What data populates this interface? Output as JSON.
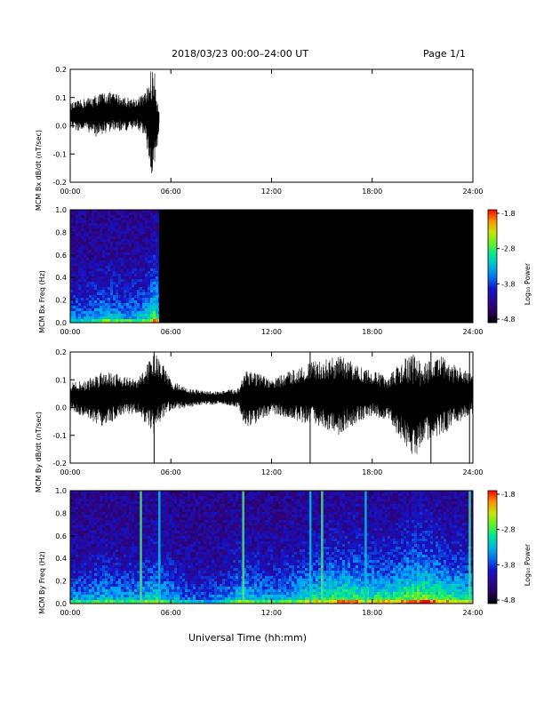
{
  "header": {
    "title": "2018/03/23  00:00–24:00 UT",
    "page": "Page 1/1"
  },
  "x_axis_label": "Universal Time (hh:mm)",
  "chart_data": [
    {
      "type": "line",
      "ylabel": "MCM Bx dB/dt (nT/sec)",
      "xlim": [
        0,
        24
      ],
      "ylim": [
        -0.2,
        0.2
      ],
      "xticks": [
        "00:00",
        "06:00",
        "12:00",
        "18:00",
        "24:00"
      ],
      "yticks": [
        "-0.2",
        "-0.1",
        "0.0",
        "0.1",
        "0.2"
      ],
      "data_end_hour": 5.3,
      "envelope": {
        "x": [
          0,
          0.5,
          1,
          1.5,
          2,
          2.5,
          3,
          3.5,
          4,
          4.5,
          4.8,
          5.0,
          5.1,
          5.2,
          5.3
        ],
        "upper": [
          0.08,
          0.09,
          0.1,
          0.11,
          0.12,
          0.12,
          0.11,
          0.1,
          0.1,
          0.12,
          0.2,
          0.2,
          0.16,
          0.1,
          0.06
        ],
        "lower": [
          -0.01,
          -0.02,
          -0.02,
          -0.04,
          -0.03,
          -0.02,
          -0.02,
          -0.02,
          -0.01,
          -0.04,
          -0.2,
          -0.15,
          -0.12,
          -0.08,
          0.0
        ]
      }
    },
    {
      "type": "heatmap",
      "ylabel": "MCM Bx Freq (Hz)",
      "colorbar_label": "Log₁₀ Power",
      "xlim": [
        0,
        24
      ],
      "ylim": [
        0,
        1.0
      ],
      "xticks": [
        "00:00",
        "06:00",
        "12:00",
        "18:00",
        "24:00"
      ],
      "yticks": [
        "0.0",
        "0.2",
        "0.4",
        "0.6",
        "0.8",
        "1.0"
      ],
      "colorbar_ticks": [
        "-1.8",
        "-2.8",
        "-3.8",
        "-4.8"
      ],
      "clim": [
        -4.8,
        -1.8
      ],
      "data_end_hour": 5.3,
      "activity": [
        [
          0,
          0.4
        ],
        [
          1,
          0.45
        ],
        [
          2,
          0.55
        ],
        [
          3,
          0.5
        ],
        [
          4,
          0.5
        ],
        [
          4.5,
          0.6
        ],
        [
          5.0,
          0.8
        ],
        [
          5.3,
          0.5
        ]
      ]
    },
    {
      "type": "line",
      "ylabel": "MCM By dB/dt (nT/sec)",
      "xlim": [
        0,
        24
      ],
      "ylim": [
        -0.2,
        0.2
      ],
      "xticks": [
        "00:00",
        "06:00",
        "12:00",
        "18:00",
        "24:00"
      ],
      "yticks": [
        "-0.2",
        "-0.1",
        "0.0",
        "0.1",
        "0.2"
      ],
      "data_end_hour": 24,
      "spikes": [
        5.0,
        14.3,
        21.5,
        23.8
      ],
      "envelope": {
        "x": [
          0,
          1,
          2,
          3,
          4,
          5,
          5.5,
          6,
          7,
          8,
          9,
          10,
          10.5,
          11,
          12,
          13,
          14,
          15,
          16,
          17,
          18,
          19,
          20,
          20.5,
          21,
          22,
          23,
          24
        ],
        "upper": [
          0.09,
          0.1,
          0.14,
          0.12,
          0.1,
          0.2,
          0.16,
          0.1,
          0.07,
          0.06,
          0.06,
          0.07,
          0.15,
          0.13,
          0.1,
          0.13,
          0.16,
          0.17,
          0.19,
          0.16,
          0.13,
          0.12,
          0.18,
          0.2,
          0.16,
          0.19,
          0.15,
          0.12
        ],
        "lower": [
          -0.01,
          -0.04,
          -0.07,
          -0.03,
          -0.02,
          -0.1,
          -0.04,
          -0.01,
          0.0,
          0.01,
          0.01,
          0.0,
          -0.08,
          -0.06,
          -0.02,
          -0.04,
          -0.06,
          -0.07,
          -0.1,
          -0.06,
          -0.03,
          -0.05,
          -0.14,
          -0.2,
          -0.12,
          -0.11,
          -0.06,
          -0.02
        ]
      }
    },
    {
      "type": "heatmap",
      "ylabel": "MCM By Freq (Hz)",
      "colorbar_label": "Log₁₀ Power",
      "xlim": [
        0,
        24
      ],
      "ylim": [
        0,
        1.0
      ],
      "xticks": [
        "00:00",
        "06:00",
        "12:00",
        "18:00",
        "24:00"
      ],
      "yticks": [
        "0.0",
        "0.2",
        "0.4",
        "0.6",
        "0.8",
        "1.0"
      ],
      "colorbar_ticks": [
        "-1.8",
        "-2.8",
        "-3.8",
        "-4.8"
      ],
      "clim": [
        -4.8,
        -1.8
      ],
      "data_end_hour": 24,
      "spikes": [
        4.2,
        5.3,
        10.3,
        14.3,
        15.0,
        17.6,
        23.8
      ],
      "activity": [
        [
          0,
          0.45
        ],
        [
          1,
          0.5
        ],
        [
          2,
          0.55
        ],
        [
          3,
          0.5
        ],
        [
          4,
          0.5
        ],
        [
          5,
          0.65
        ],
        [
          6,
          0.5
        ],
        [
          7,
          0.35
        ],
        [
          8,
          0.35
        ],
        [
          9,
          0.4
        ],
        [
          10,
          0.6
        ],
        [
          11,
          0.55
        ],
        [
          12,
          0.5
        ],
        [
          13,
          0.55
        ],
        [
          14,
          0.65
        ],
        [
          15,
          0.7
        ],
        [
          16,
          0.75
        ],
        [
          17,
          0.75
        ],
        [
          18,
          0.7
        ],
        [
          19,
          0.7
        ],
        [
          20,
          0.8
        ],
        [
          21,
          0.85
        ],
        [
          22,
          0.75
        ],
        [
          23,
          0.7
        ],
        [
          24,
          0.65
        ]
      ]
    }
  ]
}
